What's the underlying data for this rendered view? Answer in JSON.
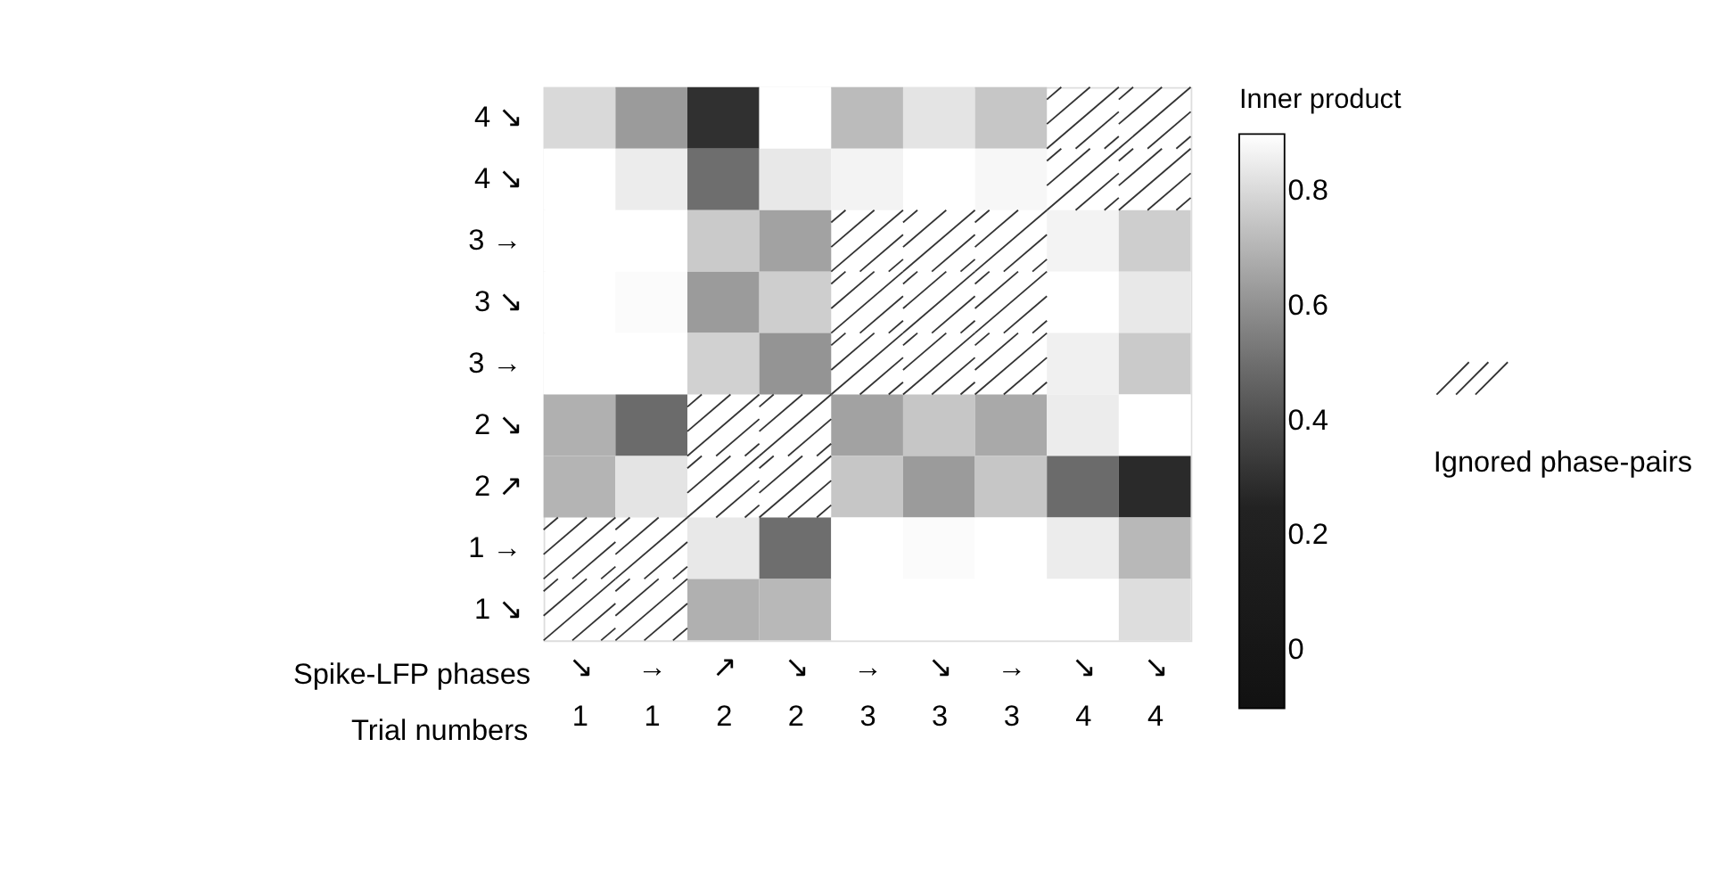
{
  "chart_data": {
    "type": "heatmap",
    "categories": [
      "↘\n1",
      "→\n1",
      "↗\n2",
      "↘\n2",
      "→\n3",
      "↘\n3",
      "→\n3",
      "↘\n4",
      "↘\n4"
    ],
    "y_categories": [
      "4 ↘",
      "4 ↘",
      "3 →",
      "3 ↘",
      "3 →",
      "2 ↘",
      "2 ↗",
      "1 →",
      "1 ↘"
    ],
    "cells": [
      [
        0.8,
        0.63,
        0.3,
        0.9,
        0.72,
        0.83,
        0.75,
        null,
        null
      ],
      [
        0.9,
        0.85,
        0.5,
        0.84,
        0.87,
        0.9,
        0.88,
        null,
        null
      ],
      [
        0.9,
        0.9,
        0.76,
        0.65,
        null,
        null,
        null,
        0.87,
        0.77
      ],
      [
        0.9,
        0.89,
        0.63,
        0.77,
        null,
        null,
        null,
        0.9,
        0.84
      ],
      [
        0.9,
        0.9,
        0.78,
        0.61,
        null,
        null,
        null,
        0.86,
        0.76
      ],
      [
        0.69,
        0.49,
        null,
        null,
        0.65,
        0.75,
        0.67,
        0.85,
        0.9
      ],
      [
        0.7,
        0.83,
        null,
        null,
        0.75,
        0.63,
        0.75,
        0.49,
        0.28
      ],
      [
        null,
        null,
        0.84,
        0.5,
        0.9,
        0.89,
        0.9,
        0.85,
        0.71
      ],
      [
        null,
        null,
        0.69,
        0.71,
        0.9,
        0.9,
        0.9,
        0.9,
        0.81
      ]
    ],
    "clim": [
      -0.1,
      0.9
    ],
    "cticks": [
      0,
      0.2,
      0.4,
      0.6,
      0.8
    ],
    "clabel": "Inner product",
    "xlabel": "Trial numbers",
    "annotations": [
      "Spike-LFP phases",
      "Ignored phase-pairs"
    ]
  }
}
